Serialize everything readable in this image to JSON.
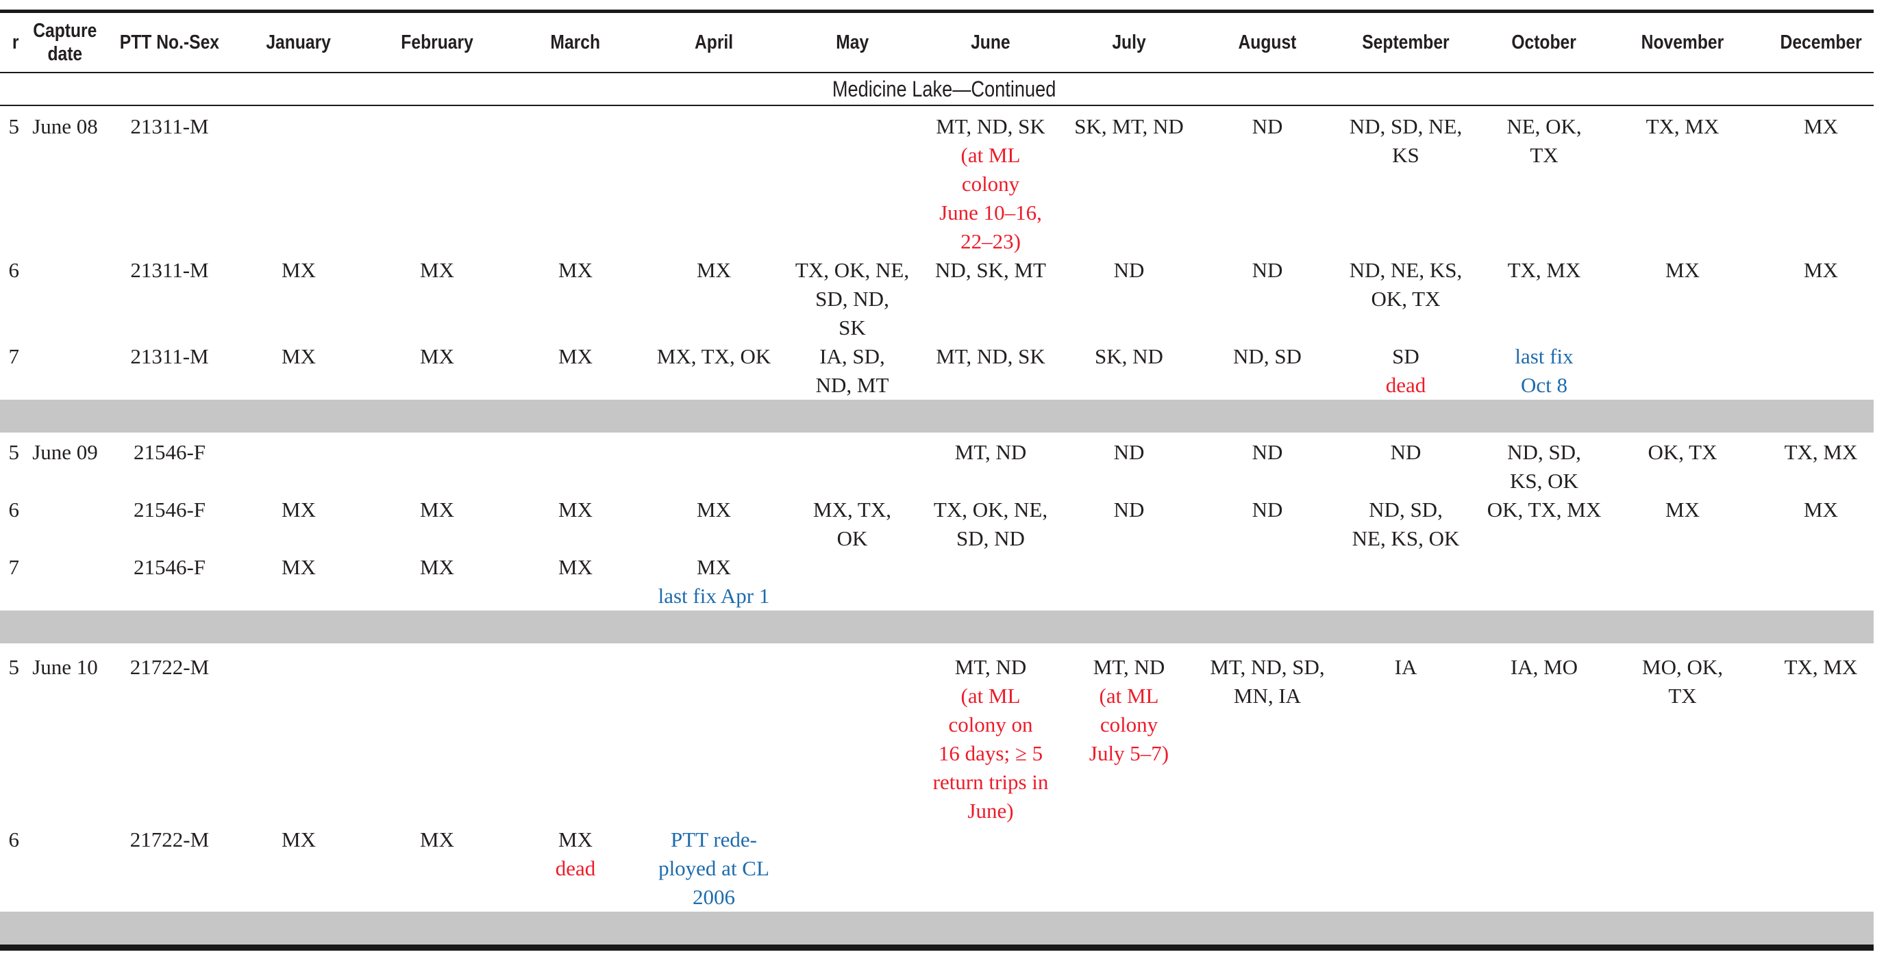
{
  "section_title": "Medicine Lake—Continued",
  "colors": {
    "red": "#ed1c29",
    "blue": "#1e6bad",
    "text": "#231f20",
    "separator_gray": "#c6c6c6"
  },
  "header": {
    "year_fragment": "r",
    "capture_date_lines": [
      "Capture",
      "date"
    ],
    "ptt": "PTT No.-Sex",
    "months": [
      "January",
      "February",
      "March",
      "April",
      "May",
      "June",
      "July",
      "August",
      "September",
      "October",
      "November",
      "December"
    ]
  },
  "rows": [
    {
      "year": "5",
      "capture_date": "June 08",
      "ptt": "21311-M",
      "cells": {
        "June": [
          {
            "c": "black",
            "lines": [
              "MT, ND, SK"
            ]
          },
          {
            "c": "red",
            "lines": [
              "(at ML",
              "colony",
              "June 10–16,",
              "22–23)"
            ]
          }
        ],
        "July": [
          {
            "c": "black",
            "lines": [
              "SK, MT, ND"
            ]
          }
        ],
        "August": [
          {
            "c": "black",
            "lines": [
              "ND"
            ]
          }
        ],
        "September": [
          {
            "c": "black",
            "lines": [
              "ND, SD, NE,",
              "KS"
            ]
          }
        ],
        "October": [
          {
            "c": "black",
            "lines": [
              "NE, OK,",
              "TX"
            ]
          }
        ],
        "November": [
          {
            "c": "black",
            "lines": [
              "TX, MX"
            ]
          }
        ],
        "December": [
          {
            "c": "black",
            "lines": [
              "MX"
            ]
          }
        ]
      }
    },
    {
      "year": "6",
      "capture_date": "",
      "ptt": "21311-M",
      "cells": {
        "January": [
          {
            "c": "black",
            "lines": [
              "MX"
            ]
          }
        ],
        "February": [
          {
            "c": "black",
            "lines": [
              "MX"
            ]
          }
        ],
        "March": [
          {
            "c": "black",
            "lines": [
              "MX"
            ]
          }
        ],
        "April": [
          {
            "c": "black",
            "lines": [
              "MX"
            ]
          }
        ],
        "May": [
          {
            "c": "black",
            "lines": [
              "TX, OK, NE,",
              "SD, ND,",
              "SK"
            ]
          }
        ],
        "June": [
          {
            "c": "black",
            "lines": [
              "ND, SK, MT"
            ]
          }
        ],
        "July": [
          {
            "c": "black",
            "lines": [
              "ND"
            ]
          }
        ],
        "August": [
          {
            "c": "black",
            "lines": [
              "ND"
            ]
          }
        ],
        "September": [
          {
            "c": "black",
            "lines": [
              "ND, NE, KS,",
              "OK, TX"
            ]
          }
        ],
        "October": [
          {
            "c": "black",
            "lines": [
              "TX, MX"
            ]
          }
        ],
        "November": [
          {
            "c": "black",
            "lines": [
              "MX"
            ]
          }
        ],
        "December": [
          {
            "c": "black",
            "lines": [
              "MX"
            ]
          }
        ]
      }
    },
    {
      "year": "7",
      "capture_date": "",
      "ptt": "21311-M",
      "cells": {
        "January": [
          {
            "c": "black",
            "lines": [
              "MX"
            ]
          }
        ],
        "February": [
          {
            "c": "black",
            "lines": [
              "MX"
            ]
          }
        ],
        "March": [
          {
            "c": "black",
            "lines": [
              "MX"
            ]
          }
        ],
        "April": [
          {
            "c": "black",
            "lines": [
              "MX, TX, OK"
            ]
          }
        ],
        "May": [
          {
            "c": "black",
            "lines": [
              "IA, SD,",
              "ND, MT"
            ]
          }
        ],
        "June": [
          {
            "c": "black",
            "lines": [
              "MT, ND, SK"
            ]
          }
        ],
        "July": [
          {
            "c": "black",
            "lines": [
              "SK, ND"
            ]
          }
        ],
        "August": [
          {
            "c": "black",
            "lines": [
              "ND, SD"
            ]
          }
        ],
        "September": [
          {
            "c": "black",
            "lines": [
              "SD"
            ]
          },
          {
            "c": "red",
            "lines": [
              "dead"
            ]
          }
        ],
        "October": [
          {
            "c": "blue",
            "lines": [
              "last fix",
              "Oct 8"
            ]
          }
        ]
      }
    },
    {
      "separator": true
    },
    {
      "year": "5",
      "capture_date": "June 09",
      "ptt": "21546-F",
      "cells": {
        "June": [
          {
            "c": "black",
            "lines": [
              "MT, ND"
            ]
          }
        ],
        "July": [
          {
            "c": "black",
            "lines": [
              "ND"
            ]
          }
        ],
        "August": [
          {
            "c": "black",
            "lines": [
              "ND"
            ]
          }
        ],
        "September": [
          {
            "c": "black",
            "lines": [
              "ND"
            ]
          }
        ],
        "October": [
          {
            "c": "black",
            "lines": [
              "ND, SD,",
              "KS, OK"
            ]
          }
        ],
        "November": [
          {
            "c": "black",
            "lines": [
              "OK, TX"
            ]
          }
        ],
        "December": [
          {
            "c": "black",
            "lines": [
              "TX, MX"
            ]
          }
        ]
      }
    },
    {
      "year": "6",
      "capture_date": "",
      "ptt": "21546-F",
      "cells": {
        "January": [
          {
            "c": "black",
            "lines": [
              "MX"
            ]
          }
        ],
        "February": [
          {
            "c": "black",
            "lines": [
              "MX"
            ]
          }
        ],
        "March": [
          {
            "c": "black",
            "lines": [
              "MX"
            ]
          }
        ],
        "April": [
          {
            "c": "black",
            "lines": [
              "MX"
            ]
          }
        ],
        "May": [
          {
            "c": "black",
            "lines": [
              "MX, TX,",
              "OK"
            ]
          }
        ],
        "June": [
          {
            "c": "black",
            "lines": [
              "TX, OK, NE,",
              "SD, ND"
            ]
          }
        ],
        "July": [
          {
            "c": "black",
            "lines": [
              "ND"
            ]
          }
        ],
        "August": [
          {
            "c": "black",
            "lines": [
              "ND"
            ]
          }
        ],
        "September": [
          {
            "c": "black",
            "lines": [
              "ND, SD,",
              "NE, KS, OK"
            ]
          }
        ],
        "October": [
          {
            "c": "black",
            "lines": [
              "OK, TX, MX"
            ]
          }
        ],
        "November": [
          {
            "c": "black",
            "lines": [
              "MX"
            ]
          }
        ],
        "December": [
          {
            "c": "black",
            "lines": [
              "MX"
            ]
          }
        ]
      }
    },
    {
      "year": "7",
      "capture_date": "",
      "ptt": "21546-F",
      "cells": {
        "January": [
          {
            "c": "black",
            "lines": [
              "MX"
            ]
          }
        ],
        "February": [
          {
            "c": "black",
            "lines": [
              "MX"
            ]
          }
        ],
        "March": [
          {
            "c": "black",
            "lines": [
              "MX"
            ]
          }
        ],
        "April": [
          {
            "c": "black",
            "lines": [
              "MX"
            ]
          },
          {
            "c": "blue",
            "lines": [
              "last fix Apr 1"
            ]
          }
        ]
      }
    },
    {
      "separator": true
    },
    {
      "year": "5",
      "capture_date": "June 10",
      "ptt": "21722-M",
      "cells": {
        "June": [
          {
            "c": "black",
            "lines": [
              "MT, ND"
            ]
          },
          {
            "c": "red",
            "lines": [
              "(at ML",
              "colony on",
              "16 days; ≥ 5",
              "return trips in",
              "June)"
            ]
          }
        ],
        "July": [
          {
            "c": "black",
            "lines": [
              "MT, ND"
            ]
          },
          {
            "c": "red",
            "lines": [
              "(at ML",
              "colony",
              "July 5–7)"
            ]
          }
        ],
        "August": [
          {
            "c": "black",
            "lines": [
              "MT, ND, SD,",
              "MN, IA"
            ]
          }
        ],
        "September": [
          {
            "c": "black",
            "lines": [
              "IA"
            ]
          }
        ],
        "October": [
          {
            "c": "black",
            "lines": [
              "IA, MO"
            ]
          }
        ],
        "November": [
          {
            "c": "black",
            "lines": [
              "MO, OK,",
              "TX"
            ]
          }
        ],
        "December": [
          {
            "c": "black",
            "lines": [
              "TX, MX"
            ]
          }
        ]
      }
    },
    {
      "year": "6",
      "capture_date": "",
      "ptt": "21722-M",
      "cells": {
        "January": [
          {
            "c": "black",
            "lines": [
              "MX"
            ]
          }
        ],
        "February": [
          {
            "c": "black",
            "lines": [
              "MX"
            ]
          }
        ],
        "March": [
          {
            "c": "black",
            "lines": [
              "MX"
            ]
          },
          {
            "c": "red",
            "lines": [
              "dead"
            ]
          }
        ],
        "April": [
          {
            "c": "blue",
            "lines": [
              "PTT rede-",
              "ployed at CL",
              "2006"
            ]
          }
        ]
      }
    },
    {
      "separator": true
    }
  ]
}
